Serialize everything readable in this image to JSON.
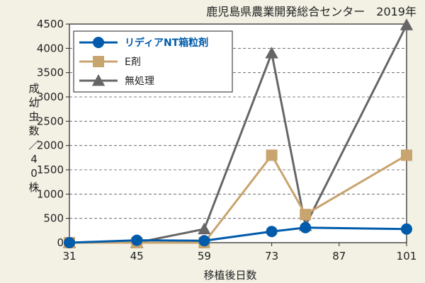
{
  "chart_data": {
    "type": "line",
    "title": "鹿児島県農業開発総合センター　2019年",
    "xlabel": "移植後日数",
    "ylabel": "成幼虫数／40株",
    "x": [
      31,
      45,
      59,
      73,
      80,
      101
    ],
    "x_ticks": [
      31,
      45,
      59,
      73,
      87,
      101
    ],
    "xlim": [
      31,
      101
    ],
    "y_ticks": [
      0,
      500,
      1000,
      1500,
      2000,
      2500,
      3000,
      3500,
      4000,
      4500
    ],
    "ylim": [
      0,
      4500
    ],
    "grid": "horizontal-dashed",
    "legend_position": "top-left",
    "series": [
      {
        "name": "リディアNT箱粒剤",
        "marker": "circle",
        "color": "#005bab",
        "values": [
          0,
          50,
          40,
          230,
          310,
          280
        ]
      },
      {
        "name": "E剤",
        "marker": "square",
        "color": "#c8a46e",
        "values": [
          0,
          0,
          0,
          1800,
          580,
          1800
        ]
      },
      {
        "name": "無処理",
        "marker": "triangle",
        "color": "#666666",
        "values": [
          0,
          0,
          280,
          3900,
          350,
          4480
        ]
      }
    ]
  }
}
